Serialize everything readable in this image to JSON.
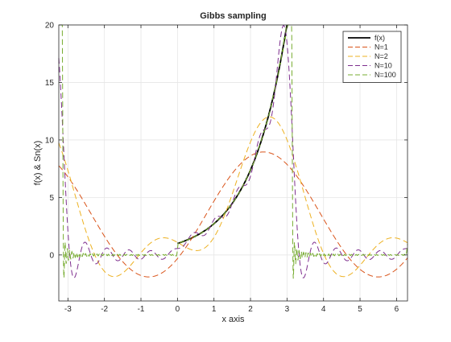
{
  "chart_data": {
    "type": "line",
    "title": "Gibbs sampling",
    "xlabel": "x axis",
    "ylabel": "f(x) & Sn(x)",
    "xlim": [
      -3.25,
      6.3
    ],
    "ylim": [
      -4,
      20
    ],
    "xticks": [
      -3,
      -2,
      -1,
      0,
      1,
      2,
      3,
      4,
      5,
      6
    ],
    "yticks": [
      0,
      5,
      10,
      15,
      20
    ],
    "grid": true,
    "legend": {
      "position": "top-right",
      "entries": [
        "f(x)",
        "N=1",
        "N=2",
        "N=10",
        "N=100"
      ]
    },
    "colors": {
      "f(x)": "#000000",
      "N=1": "#d95319",
      "N=2": "#edb120",
      "N=10": "#7e2f8e",
      "N=100": "#77ac30",
      "grid": "#e6e6e6",
      "axis": "#262626"
    },
    "function": "f(x) = e^x on [0, pi], f(x) = 0 on (-pi, 0), period 2*pi",
    "series": [
      {
        "name": "f(x)",
        "style": "solid",
        "x": [
          0,
          0.5,
          1.0,
          1.5,
          2.0,
          2.5,
          3.0
        ],
        "y": [
          1.0,
          1.65,
          2.72,
          4.48,
          7.39,
          12.18,
          20.0
        ]
      },
      {
        "name": "N=1",
        "style": "dashed",
        "x": [
          -3.2,
          -3.0,
          -2.0,
          -1.0,
          0.0,
          1.0,
          2.0,
          2.5,
          3.0,
          4.0,
          5.0,
          6.0,
          6.3
        ],
        "y": [
          7.6,
          6.9,
          2.4,
          -1.4,
          1.3,
          5.5,
          8.8,
          8.9,
          7.9,
          2.4,
          -1.4,
          0.2,
          1.6
        ]
      },
      {
        "name": "N=2",
        "style": "dashed",
        "x": [
          -3.2,
          -3.0,
          -2.0,
          -1.0,
          0.0,
          1.0,
          2.0,
          2.5,
          3.0,
          4.0,
          5.0,
          6.0,
          6.3
        ],
        "y": [
          8.5,
          7.4,
          0.2,
          1.4,
          1.2,
          3.5,
          10.3,
          12.0,
          10.5,
          0.8,
          -1.5,
          1.8,
          1.5
        ]
      },
      {
        "name": "N=10",
        "style": "dashed",
        "x": [
          -3.2,
          -3.0,
          -2.5,
          -2.0,
          -1.0,
          0.0,
          1.0,
          2.0,
          2.5,
          2.9,
          3.2,
          3.5,
          4.0,
          5.0,
          6.0,
          6.3
        ],
        "y": [
          10.8,
          1.0,
          0.6,
          0.3,
          0.1,
          1.0,
          2.7,
          7.4,
          12.2,
          20.0,
          9.0,
          -1.5,
          0.6,
          0.2,
          0.3,
          0.9
        ]
      },
      {
        "name": "N=100",
        "style": "dashed",
        "x": [
          -3.2,
          -3.0,
          -2.0,
          -1.0,
          0.0,
          1.0,
          2.0,
          2.5,
          3.05,
          3.15,
          3.4,
          4.0,
          5.0,
          6.0,
          6.3
        ],
        "y": [
          -1.8,
          0.4,
          0.1,
          0.05,
          1.0,
          2.7,
          7.4,
          12.2,
          20.0,
          0.3,
          0.2,
          0.1,
          0.05,
          0.05,
          0.4
        ]
      }
    ]
  }
}
